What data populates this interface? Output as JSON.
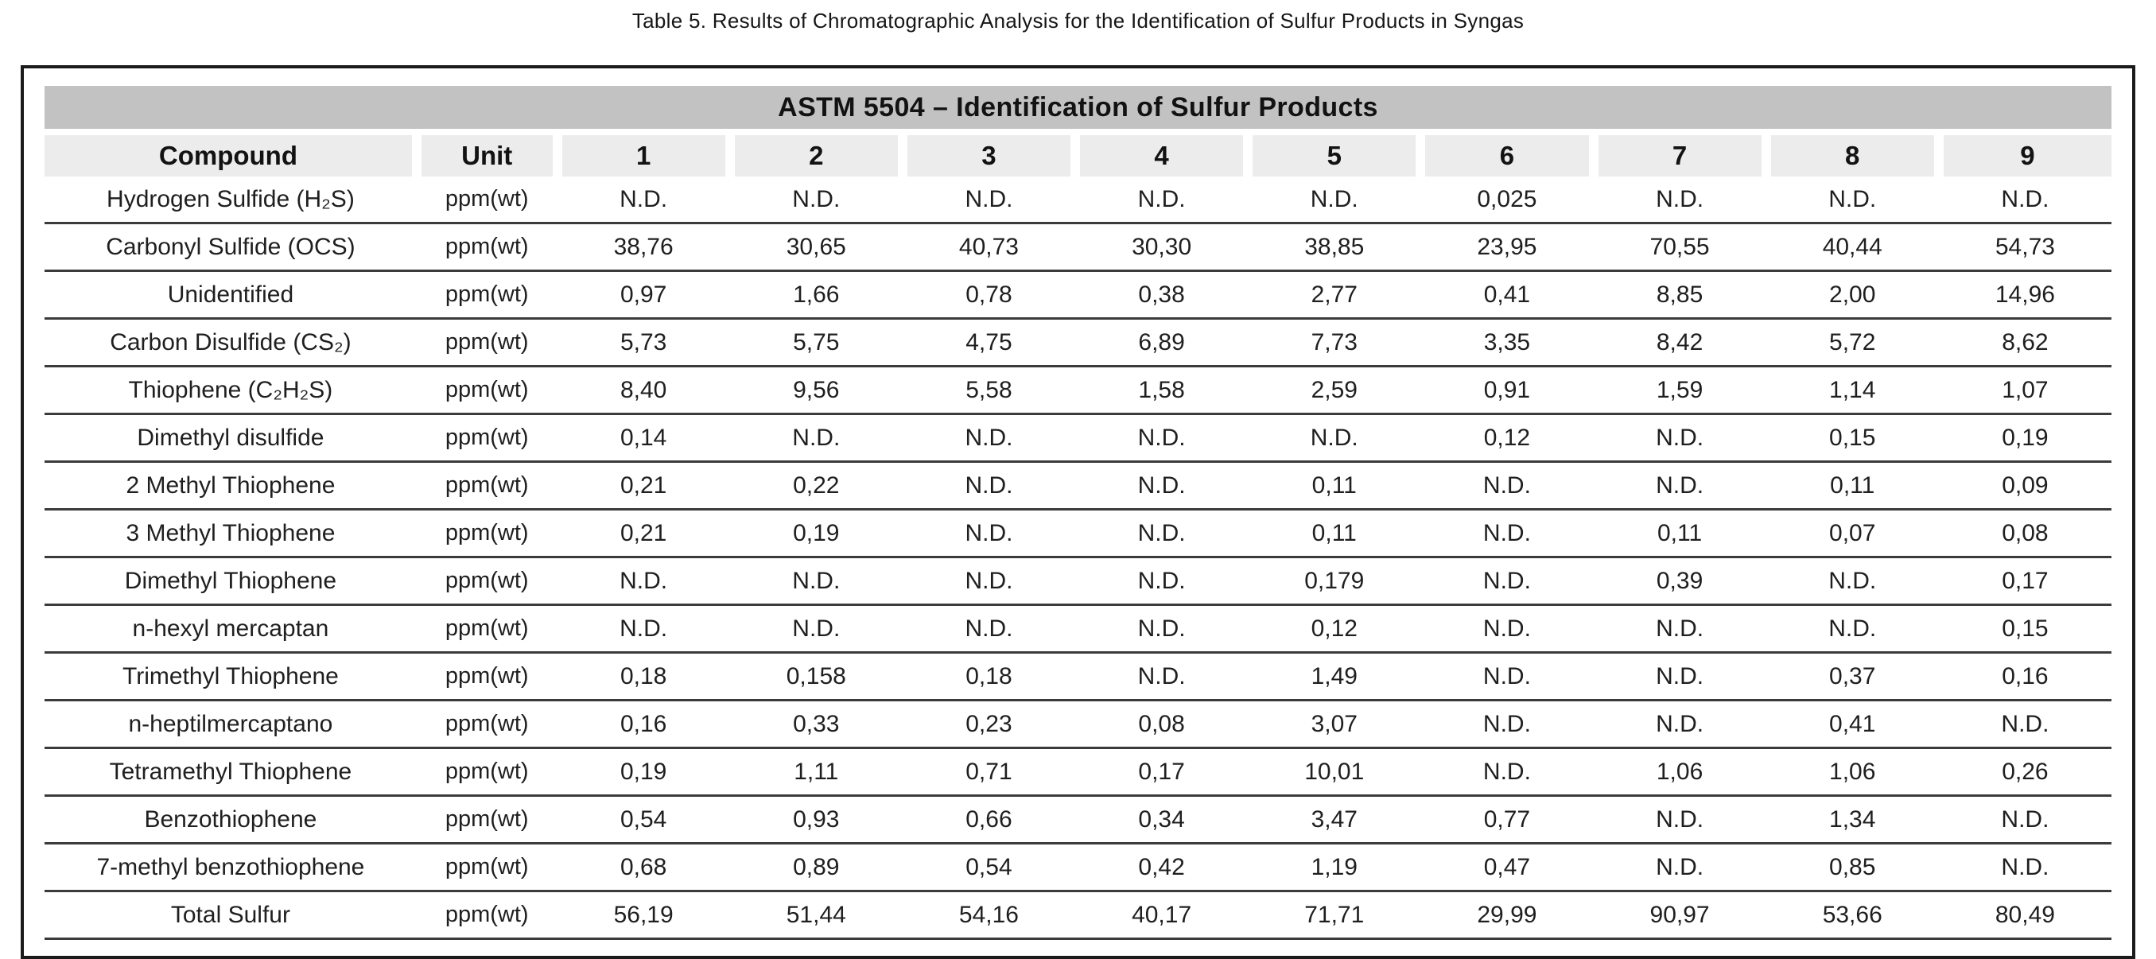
{
  "page": {
    "title": "Table 5. Results of Chromatographic Analysis for the Identification of Sulfur Products in Syngas"
  },
  "table": {
    "banner": "ASTM 5504 – Identification of Sulfur Products",
    "columns": [
      "Compound",
      "Unit",
      "1",
      "2",
      "3",
      "4",
      "5",
      "6",
      "7",
      "8",
      "9"
    ],
    "rows": [
      {
        "compound": "Hydrogen Sulfide (H₂S)",
        "unit": "ppm(wt)",
        "values": [
          "N.D.",
          "N.D.",
          "N.D.",
          "N.D.",
          "N.D.",
          "0,025",
          "N.D.",
          "N.D.",
          "N.D."
        ]
      },
      {
        "compound": "Carbonyl Sulfide (OCS)",
        "unit": "ppm(wt)",
        "values": [
          "38,76",
          "30,65",
          "40,73",
          "30,30",
          "38,85",
          "23,95",
          "70,55",
          "40,44",
          "54,73"
        ]
      },
      {
        "compound": "Unidentified",
        "unit": "ppm(wt)",
        "values": [
          "0,97",
          "1,66",
          "0,78",
          "0,38",
          "2,77",
          "0,41",
          "8,85",
          "2,00",
          "14,96"
        ]
      },
      {
        "compound": "Carbon Disulfide (CS₂)",
        "unit": "ppm(wt)",
        "values": [
          "5,73",
          "5,75",
          "4,75",
          "6,89",
          "7,73",
          "3,35",
          "8,42",
          "5,72",
          "8,62"
        ]
      },
      {
        "compound": "Thiophene (C₂H₂S)",
        "unit": "ppm(wt)",
        "values": [
          "8,40",
          "9,56",
          "5,58",
          "1,58",
          "2,59",
          "0,91",
          "1,59",
          "1,14",
          "1,07"
        ]
      },
      {
        "compound": "Dimethyl disulfide",
        "unit": "ppm(wt)",
        "values": [
          "0,14",
          "N.D.",
          "N.D.",
          "N.D.",
          "N.D.",
          "0,12",
          "N.D.",
          "0,15",
          "0,19"
        ]
      },
      {
        "compound": "2 Methyl Thiophene",
        "unit": "ppm(wt)",
        "values": [
          "0,21",
          "0,22",
          "N.D.",
          "N.D.",
          "0,11",
          "N.D.",
          "N.D.",
          "0,11",
          "0,09"
        ]
      },
      {
        "compound": "3 Methyl Thiophene",
        "unit": "ppm(wt)",
        "values": [
          "0,21",
          "0,19",
          "N.D.",
          "N.D.",
          "0,11",
          "N.D.",
          "0,11",
          "0,07",
          "0,08"
        ]
      },
      {
        "compound": "Dimethyl Thiophene",
        "unit": "ppm(wt)",
        "values": [
          "N.D.",
          "N.D.",
          "N.D.",
          "N.D.",
          "0,179",
          "N.D.",
          "0,39",
          "N.D.",
          "0,17"
        ]
      },
      {
        "compound": "n-hexyl mercaptan",
        "unit": "ppm(wt)",
        "values": [
          "N.D.",
          "N.D.",
          "N.D.",
          "N.D.",
          "0,12",
          "N.D.",
          "N.D.",
          "N.D.",
          "0,15"
        ]
      },
      {
        "compound": "Trimethyl Thiophene",
        "unit": "ppm(wt)",
        "values": [
          "0,18",
          "0,158",
          "0,18",
          "N.D.",
          "1,49",
          "N.D.",
          "N.D.",
          "0,37",
          "0,16"
        ]
      },
      {
        "compound": "n-heptilmercaptano",
        "unit": "ppm(wt)",
        "values": [
          "0,16",
          "0,33",
          "0,23",
          "0,08",
          "3,07",
          "N.D.",
          "N.D.",
          "0,41",
          "N.D."
        ]
      },
      {
        "compound": "Tetramethyl Thiophene",
        "unit": "ppm(wt)",
        "values": [
          "0,19",
          "1,11",
          "0,71",
          "0,17",
          "10,01",
          "N.D.",
          "1,06",
          "1,06",
          "0,26"
        ]
      },
      {
        "compound": "Benzothiophene",
        "unit": "ppm(wt)",
        "values": [
          "0,54",
          "0,93",
          "0,66",
          "0,34",
          "3,47",
          "0,77",
          "N.D.",
          "1,34",
          "N.D."
        ]
      },
      {
        "compound": "7-methyl benzothiophene",
        "unit": "ppm(wt)",
        "values": [
          "0,68",
          "0,89",
          "0,54",
          "0,42",
          "1,19",
          "0,47",
          "N.D.",
          "0,85",
          "N.D."
        ]
      },
      {
        "compound": "Total Sulfur",
        "unit": "ppm(wt)",
        "values": [
          "56,19",
          "51,44",
          "54,16",
          "40,17",
          "71,71",
          "29,99",
          "90,97",
          "53,66",
          "80,49"
        ]
      }
    ],
    "colors": {
      "banner_bg": "#c2c2c2",
      "header_bg": "#ececec",
      "row_line": "#3b3b3b",
      "border": "#1b1b1b"
    }
  }
}
